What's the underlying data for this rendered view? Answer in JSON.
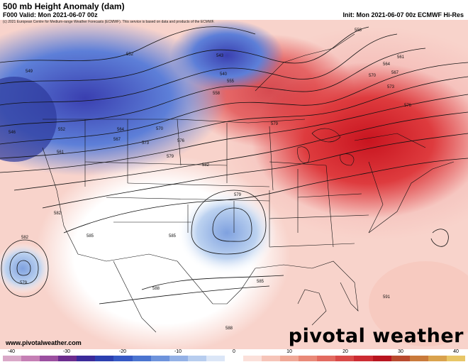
{
  "header": {
    "title": "500 mb Height Anomaly (dam)",
    "valid": "F000 Valid: Mon 2021-06-07 00z",
    "init": "Init: Mon 2021-06-07 00z ECMWF Hi-Res",
    "copyright": "(c) 2021 European Centre for Medium-range Weather Forecasts (ECMWF). This service is based on data and products of the ECMWF."
  },
  "map": {
    "contour_labels": [
      "552",
      "549",
      "546",
      "543",
      "540",
      "555",
      "552",
      "558",
      "561",
      "564",
      "567",
      "570",
      "573",
      "576",
      "579",
      "582",
      "585",
      "588",
      "591",
      "582",
      "579",
      "582",
      "585",
      "579",
      "585",
      "588",
      "564",
      "567",
      "570",
      "573",
      "576",
      "579",
      "561",
      "558"
    ],
    "colors": {
      "neg_strong": "#2b3fb0",
      "neg_mid": "#5d7fd8",
      "neg_light": "#bcd2f0",
      "neutral": "#ffffff",
      "pos_light": "#f7c9c1",
      "pos_mid": "#e7686a",
      "pos_strong": "#c8141f"
    }
  },
  "footer": {
    "site": "www.pivotalweather.com",
    "logo": "pivotal weather"
  },
  "colorbar": {
    "ticks": [
      "-40",
      "-30",
      "-20",
      "-10",
      "0",
      "10",
      "20",
      "30",
      "40"
    ],
    "colors": [
      "#d9a8c8",
      "#c57fb5",
      "#9b4fa0",
      "#6b2c8e",
      "#3a2a9a",
      "#2b3fb0",
      "#3558c4",
      "#4a74d0",
      "#6d93dc",
      "#93b1e6",
      "#b7cdef",
      "#dbe6f7",
      "#ffffff",
      "#fbe0da",
      "#f6c4b9",
      "#f0a897",
      "#e98978",
      "#e26a60",
      "#d84a48",
      "#cc2c33",
      "#b8151f",
      "#b84a2e",
      "#c97a3b",
      "#d9a24d",
      "#e8c667"
    ]
  }
}
